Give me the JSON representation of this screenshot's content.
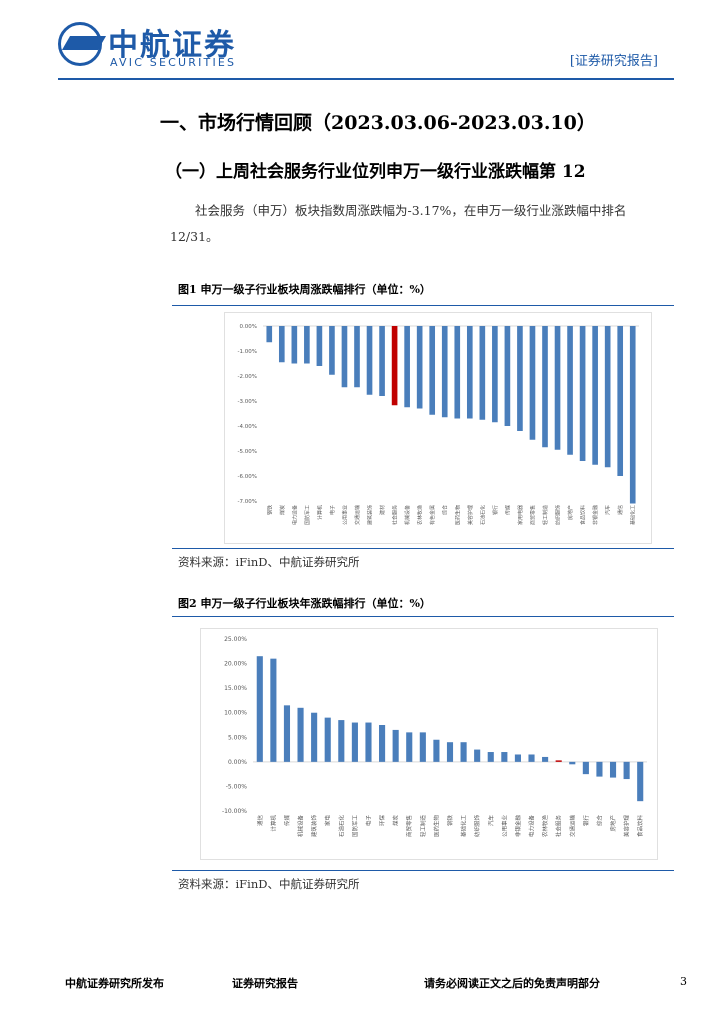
{
  "header": {
    "logo_cn": "中航证券",
    "logo_en": "AVIC SECURITIES",
    "tag": "[证券研究报告]"
  },
  "section": {
    "title": "一、市场行情回顾（2023.03.06-2023.03.10）",
    "subtitle": "（一）上周社会服务行业位列申万一级行业涨跌幅第 12",
    "paragraph": "社会服务（申万）板块指数周涨跌幅为-3.17%，在申万一级行业涨跌幅中排名 12/31。"
  },
  "figures": {
    "fig1_title": "图1  申万一级子行业板块周涨跌幅排行（单位：%）",
    "fig1_source": "资料来源：iFinD、中航证券研究所",
    "fig2_title": "图2  申万一级子行业板块年涨跌幅排行（单位：%）",
    "fig2_source": "资料来源：iFinD、中航证券研究所"
  },
  "chart_data": [
    {
      "type": "bar",
      "categories": [
        "钢铁",
        "煤炭",
        "电力设备",
        "国防军工",
        "计算机",
        "电子",
        "公用事业",
        "交通运输",
        "建筑装饰",
        "建材",
        "社会服务",
        "机械设备",
        "农林牧渔",
        "有色金属",
        "综合",
        "医药生物",
        "美容护理",
        "石油石化",
        "银行",
        "传媒",
        "家用电器",
        "商贸零售",
        "轻工制造",
        "纺织服饰",
        "房地产",
        "食品饮料",
        "非银金融",
        "汽车",
        "通信",
        "基础化工"
      ],
      "values": [
        -0.65,
        -1.45,
        -1.5,
        -1.5,
        -1.6,
        -1.95,
        -2.45,
        -2.45,
        -2.75,
        -2.8,
        -3.17,
        -3.25,
        -3.3,
        -3.55,
        -3.65,
        -3.7,
        -3.7,
        -3.75,
        -3.85,
        -4.0,
        -4.2,
        -4.55,
        -4.85,
        -4.95,
        -5.15,
        -5.4,
        -5.55,
        -5.65,
        -6.0,
        -7.1
      ],
      "highlight": "社会服务",
      "ylim": [
        -7,
        0
      ],
      "yticks": [
        "0.00%",
        "-1.00%",
        "-2.00%",
        "-3.00%",
        "-4.00%",
        "-5.00%",
        "-6.00%",
        "-7.00%"
      ],
      "bar_color": "#4a7ebb",
      "highlight_color": "#c00000"
    },
    {
      "type": "bar",
      "categories": [
        "通信",
        "计算机",
        "传媒",
        "机械设备",
        "建筑装饰",
        "家电",
        "石油石化",
        "国防军工",
        "电子",
        "环保",
        "煤炭",
        "商贸零售",
        "轻工制造",
        "医药生物",
        "钢铁",
        "基础化工",
        "纺织服饰",
        "汽车",
        "公用事业",
        "非银金融",
        "电力设备",
        "农林牧渔",
        "社会服务",
        "交通运输",
        "银行",
        "综合",
        "房地产",
        "美容护理",
        "食品饮料"
      ],
      "values": [
        21.5,
        21.0,
        11.5,
        11.0,
        10.0,
        9.0,
        8.5,
        8.0,
        8.0,
        7.5,
        6.5,
        6.0,
        6.0,
        4.5,
        4.0,
        4.0,
        2.5,
        2.0,
        2.0,
        1.5,
        1.5,
        1.0,
        0.3,
        -0.5,
        -2.5,
        -3.0,
        -3.2,
        -3.5,
        -8.0
      ],
      "highlight": "社会服务",
      "ylim": [
        -10,
        25
      ],
      "yticks": [
        "25.00%",
        "20.00%",
        "15.00%",
        "10.00%",
        "5.00%",
        "0.00%",
        "-5.00%",
        "-10.00%"
      ],
      "bar_color": "#4a7ebb",
      "highlight_color": "#c00000"
    }
  ],
  "footer": {
    "left": "中航证券研究所发布",
    "mid": "证券研究报告",
    "right": "请务必阅读正文之后的免责声明部分",
    "page": "3"
  },
  "colors": {
    "brand": "#1e5aa8",
    "bar": "#4a7ebb",
    "highlight": "#c00000"
  }
}
